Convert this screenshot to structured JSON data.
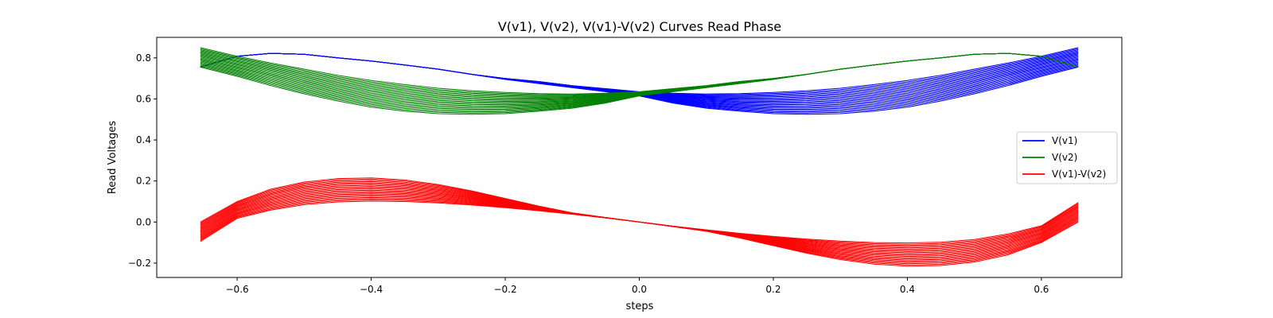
{
  "chart_data": {
    "type": "line",
    "title": "V(v1), V(v2), V(v1)-V(v2) Curves Read Phase",
    "xlabel": "steps",
    "ylabel": "Read Voltages",
    "xlim": [
      -0.72,
      0.72
    ],
    "ylim": [
      -0.27,
      0.9
    ],
    "xticks": [
      -0.6,
      -0.4,
      -0.2,
      0.0,
      0.2,
      0.4,
      0.6
    ],
    "xtick_labels": [
      "−0.6",
      "−0.4",
      "−0.2",
      "0.0",
      "0.2",
      "0.4",
      "0.6"
    ],
    "yticks": [
      -0.2,
      0.0,
      0.2,
      0.4,
      0.6,
      0.8
    ],
    "ytick_labels": [
      "−0.2",
      "0.0",
      "0.2",
      "0.4",
      "0.6",
      "0.8"
    ],
    "grid": false,
    "legend_position": "center-right",
    "x_range": [
      -0.655,
      0.655
    ],
    "curves_per_series": 20,
    "series": [
      {
        "name": "V(v1)",
        "color": "#0000ff",
        "band": {
          "x": [
            -0.655,
            -0.6,
            -0.55,
            -0.5,
            -0.45,
            -0.4,
            -0.35,
            -0.3,
            -0.25,
            -0.2,
            -0.15,
            -0.1,
            -0.05,
            0.0,
            0.05,
            0.1,
            0.15,
            0.2,
            0.25,
            0.3,
            0.35,
            0.4,
            0.45,
            0.5,
            0.55,
            0.6,
            0.655
          ],
          "y_upper": [
            0.755,
            0.808,
            0.822,
            0.818,
            0.8,
            0.785,
            0.765,
            0.745,
            0.72,
            0.7,
            0.685,
            0.665,
            0.65,
            0.635,
            0.628,
            0.624,
            0.626,
            0.632,
            0.64,
            0.652,
            0.67,
            0.69,
            0.715,
            0.745,
            0.775,
            0.808,
            0.85
          ],
          "y_lower": [
            0.755,
            0.808,
            0.822,
            0.818,
            0.8,
            0.785,
            0.765,
            0.745,
            0.72,
            0.695,
            0.675,
            0.655,
            0.635,
            0.615,
            0.58,
            0.555,
            0.54,
            0.528,
            0.525,
            0.528,
            0.54,
            0.56,
            0.59,
            0.625,
            0.665,
            0.71,
            0.755
          ]
        }
      },
      {
        "name": "V(v2)",
        "color": "#008000",
        "band": {
          "x": [
            -0.655,
            -0.6,
            -0.55,
            -0.5,
            -0.45,
            -0.4,
            -0.35,
            -0.3,
            -0.25,
            -0.2,
            -0.15,
            -0.1,
            -0.05,
            0.0,
            0.05,
            0.1,
            0.15,
            0.2,
            0.25,
            0.3,
            0.35,
            0.4,
            0.45,
            0.5,
            0.55,
            0.6,
            0.655
          ],
          "y_upper": [
            0.85,
            0.808,
            0.775,
            0.745,
            0.715,
            0.69,
            0.67,
            0.652,
            0.64,
            0.632,
            0.626,
            0.624,
            0.628,
            0.635,
            0.65,
            0.665,
            0.685,
            0.7,
            0.72,
            0.745,
            0.765,
            0.785,
            0.8,
            0.818,
            0.822,
            0.808,
            0.755
          ],
          "y_lower": [
            0.755,
            0.71,
            0.665,
            0.625,
            0.59,
            0.56,
            0.54,
            0.528,
            0.525,
            0.528,
            0.54,
            0.555,
            0.58,
            0.615,
            0.635,
            0.655,
            0.675,
            0.695,
            0.72,
            0.745,
            0.765,
            0.785,
            0.8,
            0.818,
            0.822,
            0.808,
            0.755
          ]
        }
      },
      {
        "name": "V(v1)-V(v2)",
        "color": "#ff0000",
        "band": {
          "x": [
            -0.655,
            -0.6,
            -0.55,
            -0.5,
            -0.45,
            -0.4,
            -0.35,
            -0.3,
            -0.25,
            -0.2,
            -0.15,
            -0.1,
            -0.05,
            0.0,
            0.05,
            0.1,
            0.15,
            0.2,
            0.25,
            0.3,
            0.35,
            0.4,
            0.45,
            0.5,
            0.55,
            0.6,
            0.655
          ],
          "y_upper": [
            0.0,
            0.1,
            0.16,
            0.195,
            0.212,
            0.215,
            0.205,
            0.183,
            0.152,
            0.115,
            0.078,
            0.045,
            0.022,
            0.0,
            -0.02,
            -0.038,
            -0.055,
            -0.07,
            -0.083,
            -0.093,
            -0.1,
            -0.102,
            -0.098,
            -0.085,
            -0.058,
            -0.018,
            0.095
          ],
          "y_lower": [
            -0.095,
            0.018,
            0.058,
            0.085,
            0.098,
            0.102,
            0.1,
            0.093,
            0.083,
            0.07,
            0.055,
            0.038,
            0.02,
            0.0,
            -0.022,
            -0.045,
            -0.078,
            -0.115,
            -0.152,
            -0.183,
            -0.205,
            -0.215,
            -0.212,
            -0.195,
            -0.16,
            -0.1,
            0.0
          ]
        }
      }
    ]
  }
}
